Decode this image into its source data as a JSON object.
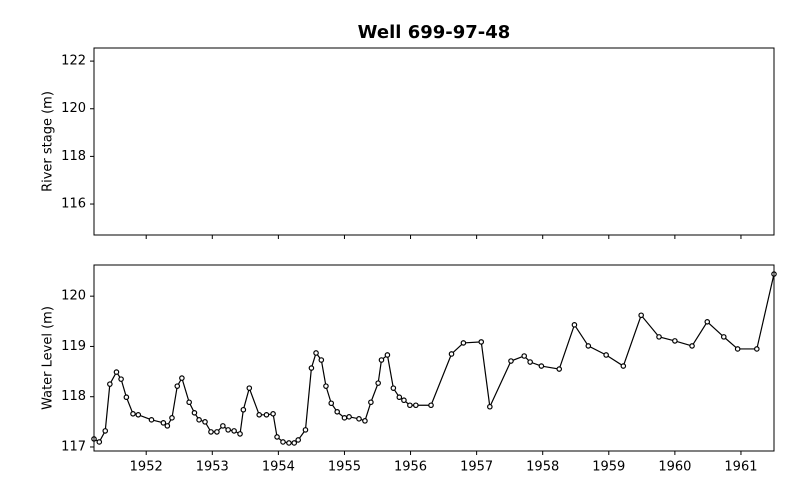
{
  "chart_data": [
    {
      "type": "line",
      "title": "Well 699-97-48",
      "ylabel": "River stage (m)",
      "xlim": [
        1951.21,
        1961.5
      ],
      "xticks": [
        1952,
        1953,
        1954,
        1955,
        1956,
        1957,
        1958,
        1959,
        1960,
        1961
      ],
      "show_xtick_labels": false,
      "ylim": [
        114.7,
        122.55
      ],
      "yticks": [
        116,
        118,
        120,
        122
      ],
      "series": []
    },
    {
      "type": "line",
      "ylabel": "Water Level (m)",
      "xlim": [
        1951.21,
        1961.5
      ],
      "xticks": [
        1952,
        1953,
        1954,
        1955,
        1956,
        1957,
        1958,
        1959,
        1960,
        1961
      ],
      "show_xtick_labels": true,
      "ylim": [
        116.92,
        120.62
      ],
      "yticks": [
        117,
        118,
        119,
        120
      ],
      "series": [
        {
          "color": "#000000",
          "x": [
            1951.21,
            1951.29,
            1951.38,
            1951.45,
            1951.55,
            1951.62,
            1951.7,
            1951.8,
            1951.88,
            1952.08,
            1952.26,
            1952.32,
            1952.39,
            1952.47,
            1952.54,
            1952.65,
            1952.73,
            1952.8,
            1952.89,
            1952.98,
            1953.07,
            1953.16,
            1953.24,
            1953.33,
            1953.42,
            1953.47,
            1953.56,
            1953.71,
            1953.82,
            1953.92,
            1953.98,
            1954.07,
            1954.16,
            1954.24,
            1954.3,
            1954.41,
            1954.5,
            1954.57,
            1954.65,
            1954.72,
            1954.8,
            1954.89,
            1955.0,
            1955.07,
            1955.22,
            1955.31,
            1955.4,
            1955.51,
            1955.56,
            1955.65,
            1955.74,
            1955.83,
            1955.9,
            1955.99,
            1956.08,
            1956.31,
            1956.62,
            1956.8,
            1957.07,
            1957.2,
            1957.52,
            1957.72,
            1957.81,
            1957.98,
            1958.25,
            1958.48,
            1958.69,
            1958.96,
            1959.22,
            1959.49,
            1959.76,
            1960.0,
            1960.26,
            1960.49,
            1960.74,
            1960.95,
            1961.24,
            1961.5
          ],
          "values": [
            117.16,
            117.1,
            117.32,
            118.25,
            118.49,
            118.35,
            117.99,
            117.66,
            117.64,
            117.54,
            117.48,
            117.42,
            117.58,
            118.21,
            118.37,
            117.89,
            117.68,
            117.54,
            117.5,
            117.3,
            117.3,
            117.42,
            117.34,
            117.32,
            117.26,
            117.74,
            118.17,
            117.64,
            117.64,
            117.66,
            117.2,
            117.1,
            117.08,
            117.08,
            117.14,
            117.34,
            118.57,
            118.87,
            118.73,
            118.21,
            117.87,
            117.7,
            117.58,
            117.6,
            117.56,
            117.52,
            117.89,
            118.27,
            118.73,
            118.83,
            118.17,
            117.99,
            117.93,
            117.83,
            117.83,
            117.83,
            118.85,
            119.07,
            119.09,
            117.8,
            118.71,
            118.81,
            118.69,
            118.61,
            118.55,
            119.43,
            119.01,
            118.83,
            118.61,
            119.62,
            119.19,
            119.11,
            119.01,
            119.49,
            119.19,
            118.95,
            118.95,
            120.44
          ]
        }
      ]
    }
  ]
}
